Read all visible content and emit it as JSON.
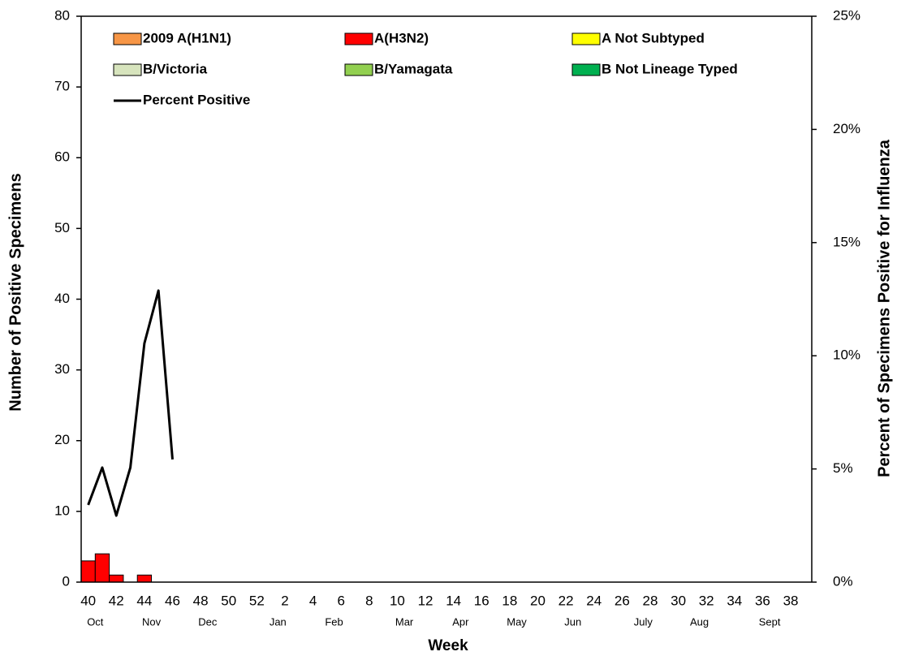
{
  "chart_data": {
    "type": "bar",
    "y_label": "Number of Positive Specimens",
    "y2_label": "Percent of Specimens  Positive for Influenza",
    "x_label": "Week",
    "categories": [
      "40",
      null,
      "42",
      null,
      "44",
      null,
      "46",
      null,
      "48",
      null,
      "50",
      null,
      "52",
      null,
      "2",
      null,
      "4",
      null,
      "6",
      null,
      "8",
      null,
      "10",
      null,
      "12",
      null,
      "14",
      null,
      "16",
      null,
      "18",
      null,
      "20",
      null,
      "22",
      null,
      "24",
      null,
      "26",
      null,
      "28",
      null,
      "30",
      null,
      "32",
      null,
      "34",
      null,
      "36",
      null,
      "38",
      null
    ],
    "month_labels": [
      null,
      "Oct",
      null,
      null,
      null,
      "Nov",
      null,
      null,
      null,
      "Dec",
      null,
      null,
      null,
      null,
      "Jan",
      null,
      null,
      null,
      "Feb",
      null,
      null,
      null,
      null,
      "Mar",
      null,
      null,
      null,
      "Apr",
      null,
      null,
      null,
      "May",
      null,
      null,
      null,
      "Jun",
      null,
      null,
      null,
      null,
      "July",
      null,
      null,
      null,
      "Aug",
      null,
      null,
      null,
      null,
      "Sept",
      null,
      null
    ],
    "ylim": [
      0,
      80
    ],
    "yticks": [
      0,
      10,
      20,
      30,
      40,
      50,
      60,
      70,
      80
    ],
    "y2lim": [
      0,
      25
    ],
    "y2ticks": [
      {
        "value": 0,
        "label": "0%"
      },
      {
        "value": 5,
        "label": "5%"
      },
      {
        "value": 10,
        "label": "10%"
      },
      {
        "value": 15,
        "label": "15%"
      },
      {
        "value": 20,
        "label": "20%"
      },
      {
        "value": 25,
        "label": "25%"
      }
    ],
    "series": [
      {
        "name": "2009 A(H1N1)",
        "color": "#f79646",
        "type": "bar",
        "values": [
          0,
          0,
          0,
          0,
          0,
          0,
          0,
          null,
          null,
          null,
          null,
          null,
          null,
          null,
          null,
          null,
          null,
          null,
          null,
          null,
          null,
          null,
          null,
          null,
          null,
          null,
          null,
          null,
          null,
          null,
          null,
          null,
          null,
          null,
          null,
          null,
          null,
          null,
          null,
          null,
          null,
          null,
          null,
          null,
          null,
          null,
          null,
          null,
          null,
          null,
          null,
          null
        ]
      },
      {
        "name": "A(H3N2)",
        "color": "#ff0000",
        "type": "bar",
        "values": [
          3,
          4,
          1,
          0,
          1,
          0,
          0,
          null,
          null,
          null,
          null,
          null,
          null,
          null,
          null,
          null,
          null,
          null,
          null,
          null,
          null,
          null,
          null,
          null,
          null,
          null,
          null,
          null,
          null,
          null,
          null,
          null,
          null,
          null,
          null,
          null,
          null,
          null,
          null,
          null,
          null,
          null,
          null,
          null,
          null,
          null,
          null,
          null,
          null,
          null,
          null,
          null
        ]
      },
      {
        "name": "A Not Subtyped",
        "color": "#ffff00",
        "type": "bar",
        "values": [
          0,
          0,
          0,
          0,
          0,
          0,
          0,
          null,
          null,
          null,
          null,
          null,
          null,
          null,
          null,
          null,
          null,
          null,
          null,
          null,
          null,
          null,
          null,
          null,
          null,
          null,
          null,
          null,
          null,
          null,
          null,
          null,
          null,
          null,
          null,
          null,
          null,
          null,
          null,
          null,
          null,
          null,
          null,
          null,
          null,
          null,
          null,
          null,
          null,
          null,
          null,
          null
        ]
      },
      {
        "name": "B/Victoria",
        "color": "#d7e4bd",
        "type": "bar",
        "values": [
          0,
          0,
          0,
          0,
          0,
          0,
          0,
          null,
          null,
          null,
          null,
          null,
          null,
          null,
          null,
          null,
          null,
          null,
          null,
          null,
          null,
          null,
          null,
          null,
          null,
          null,
          null,
          null,
          null,
          null,
          null,
          null,
          null,
          null,
          null,
          null,
          null,
          null,
          null,
          null,
          null,
          null,
          null,
          null,
          null,
          null,
          null,
          null,
          null,
          null,
          null,
          null
        ]
      },
      {
        "name": "B/Yamagata",
        "color": "#92d050",
        "type": "bar",
        "values": [
          0,
          0,
          0,
          0,
          0,
          0,
          0,
          null,
          null,
          null,
          null,
          null,
          null,
          null,
          null,
          null,
          null,
          null,
          null,
          null,
          null,
          null,
          null,
          null,
          null,
          null,
          null,
          null,
          null,
          null,
          null,
          null,
          null,
          null,
          null,
          null,
          null,
          null,
          null,
          null,
          null,
          null,
          null,
          null,
          null,
          null,
          null,
          null,
          null,
          null,
          null,
          null
        ]
      },
      {
        "name": "B Not Lineage Typed",
        "color": "#00b050",
        "type": "bar",
        "values": [
          0,
          0,
          0,
          0,
          0,
          0,
          0,
          null,
          null,
          null,
          null,
          null,
          null,
          null,
          null,
          null,
          null,
          null,
          null,
          null,
          null,
          null,
          null,
          null,
          null,
          null,
          null,
          null,
          null,
          null,
          null,
          null,
          null,
          null,
          null,
          null,
          null,
          null,
          null,
          null,
          null,
          null,
          null,
          null,
          null,
          null,
          null,
          null,
          null,
          null,
          null,
          null
        ]
      },
      {
        "name": "Percent Positive",
        "color": "#000000",
        "type": "line",
        "axis": "y2",
        "values": [
          3.41,
          5.06,
          2.94,
          5.06,
          10.55,
          12.88,
          5.42,
          null,
          null,
          null,
          null,
          null,
          null,
          null,
          null,
          null,
          null,
          null,
          null,
          null,
          null,
          null,
          null,
          null,
          null,
          null,
          null,
          null,
          null,
          null,
          null,
          null,
          null,
          null,
          null,
          null,
          null,
          null,
          null,
          null,
          null,
          null,
          null,
          null,
          null,
          null,
          null,
          null,
          null,
          null,
          null,
          null
        ]
      }
    ]
  }
}
